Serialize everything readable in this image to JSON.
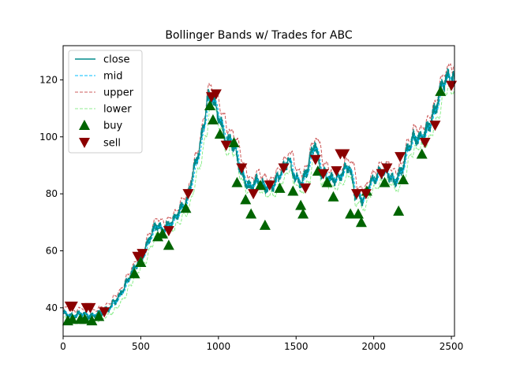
{
  "chart_data": {
    "type": "line",
    "title": "Bollinger Bands w/ Trades for ABC",
    "xlabel": "",
    "ylabel": "",
    "xlim": [
      0,
      2520
    ],
    "ylim": [
      30,
      132
    ],
    "x_ticks": [
      0,
      500,
      1000,
      1500,
      2000,
      2500
    ],
    "y_ticks": [
      40,
      60,
      80,
      100,
      120
    ],
    "x_tick_labels": [
      "0",
      "500",
      "1000",
      "1500",
      "2000",
      "2500"
    ],
    "y_tick_labels": [
      "40",
      "60",
      "80",
      "100",
      "120"
    ],
    "grid": false,
    "legend_position": "top-left",
    "colors": {
      "close": "#008b8b",
      "mid": "#00bfff",
      "upper": "#cd5c5c",
      "lower": "#90ee90",
      "buy": "#006400",
      "sell": "#8b0000"
    },
    "close_anchor_points": [
      {
        "x": 0,
        "y": 38
      },
      {
        "x": 60,
        "y": 37
      },
      {
        "x": 120,
        "y": 38
      },
      {
        "x": 180,
        "y": 37
      },
      {
        "x": 240,
        "y": 38
      },
      {
        "x": 300,
        "y": 40
      },
      {
        "x": 360,
        "y": 44
      },
      {
        "x": 420,
        "y": 50
      },
      {
        "x": 470,
        "y": 55
      },
      {
        "x": 520,
        "y": 59
      },
      {
        "x": 560,
        "y": 65
      },
      {
        "x": 600,
        "y": 69
      },
      {
        "x": 640,
        "y": 67
      },
      {
        "x": 700,
        "y": 70
      },
      {
        "x": 760,
        "y": 75
      },
      {
        "x": 800,
        "y": 78
      },
      {
        "x": 830,
        "y": 86
      },
      {
        "x": 860,
        "y": 92
      },
      {
        "x": 900,
        "y": 102
      },
      {
        "x": 930,
        "y": 113
      },
      {
        "x": 960,
        "y": 114
      },
      {
        "x": 990,
        "y": 109
      },
      {
        "x": 1020,
        "y": 104
      },
      {
        "x": 1050,
        "y": 98
      },
      {
        "x": 1080,
        "y": 99
      },
      {
        "x": 1110,
        "y": 95
      },
      {
        "x": 1150,
        "y": 87
      },
      {
        "x": 1200,
        "y": 82
      },
      {
        "x": 1250,
        "y": 85
      },
      {
        "x": 1300,
        "y": 82
      },
      {
        "x": 1350,
        "y": 83
      },
      {
        "x": 1400,
        "y": 87
      },
      {
        "x": 1450,
        "y": 92
      },
      {
        "x": 1500,
        "y": 85
      },
      {
        "x": 1540,
        "y": 84
      },
      {
        "x": 1580,
        "y": 90
      },
      {
        "x": 1620,
        "y": 98
      },
      {
        "x": 1660,
        "y": 88
      },
      {
        "x": 1720,
        "y": 85
      },
      {
        "x": 1780,
        "y": 86
      },
      {
        "x": 1840,
        "y": 90
      },
      {
        "x": 1880,
        "y": 80
      },
      {
        "x": 1930,
        "y": 78
      },
      {
        "x": 1980,
        "y": 84
      },
      {
        "x": 2030,
        "y": 87
      },
      {
        "x": 2080,
        "y": 88
      },
      {
        "x": 2130,
        "y": 84
      },
      {
        "x": 2180,
        "y": 88
      },
      {
        "x": 2220,
        "y": 96
      },
      {
        "x": 2260,
        "y": 100
      },
      {
        "x": 2300,
        "y": 99
      },
      {
        "x": 2350,
        "y": 103
      },
      {
        "x": 2400,
        "y": 110
      },
      {
        "x": 2440,
        "y": 118
      },
      {
        "x": 2480,
        "y": 121
      },
      {
        "x": 2520,
        "y": 120
      }
    ],
    "series": [
      {
        "name": "close",
        "style": "solid"
      },
      {
        "name": "mid",
        "style": "dashed"
      },
      {
        "name": "upper",
        "style": "dashed"
      },
      {
        "name": "lower",
        "style": "dashed"
      },
      {
        "name": "buy",
        "marker": "triangle-up"
      },
      {
        "name": "sell",
        "marker": "triangle-down"
      }
    ],
    "buy_points": [
      {
        "x": 30,
        "y": 35.5
      },
      {
        "x": 60,
        "y": 36
      },
      {
        "x": 110,
        "y": 36
      },
      {
        "x": 140,
        "y": 36
      },
      {
        "x": 185,
        "y": 35.5
      },
      {
        "x": 230,
        "y": 37
      },
      {
        "x": 460,
        "y": 52
      },
      {
        "x": 500,
        "y": 56
      },
      {
        "x": 610,
        "y": 65
      },
      {
        "x": 640,
        "y": 66
      },
      {
        "x": 680,
        "y": 62
      },
      {
        "x": 790,
        "y": 75
      },
      {
        "x": 945,
        "y": 111
      },
      {
        "x": 965,
        "y": 106
      },
      {
        "x": 1010,
        "y": 101
      },
      {
        "x": 1100,
        "y": 98
      },
      {
        "x": 1120,
        "y": 84
      },
      {
        "x": 1175,
        "y": 78
      },
      {
        "x": 1210,
        "y": 73
      },
      {
        "x": 1270,
        "y": 83
      },
      {
        "x": 1300,
        "y": 69
      },
      {
        "x": 1395,
        "y": 82
      },
      {
        "x": 1480,
        "y": 81
      },
      {
        "x": 1530,
        "y": 76
      },
      {
        "x": 1545,
        "y": 73
      },
      {
        "x": 1640,
        "y": 88
      },
      {
        "x": 1700,
        "y": 84
      },
      {
        "x": 1740,
        "y": 79
      },
      {
        "x": 1850,
        "y": 73
      },
      {
        "x": 1900,
        "y": 73
      },
      {
        "x": 1920,
        "y": 70
      },
      {
        "x": 1955,
        "y": 81
      },
      {
        "x": 2070,
        "y": 84
      },
      {
        "x": 2160,
        "y": 74
      },
      {
        "x": 2190,
        "y": 85
      },
      {
        "x": 2310,
        "y": 94
      },
      {
        "x": 2430,
        "y": 116
      }
    ],
    "sell_points": [
      {
        "x": 45,
        "y": 40.5
      },
      {
        "x": 60,
        "y": 40.5
      },
      {
        "x": 150,
        "y": 40
      },
      {
        "x": 175,
        "y": 40
      },
      {
        "x": 265,
        "y": 38.5
      },
      {
        "x": 480,
        "y": 58
      },
      {
        "x": 510,
        "y": 59
      },
      {
        "x": 680,
        "y": 67
      },
      {
        "x": 805,
        "y": 80
      },
      {
        "x": 955,
        "y": 114
      },
      {
        "x": 985,
        "y": 115
      },
      {
        "x": 1050,
        "y": 97
      },
      {
        "x": 1150,
        "y": 89
      },
      {
        "x": 1225,
        "y": 80
      },
      {
        "x": 1330,
        "y": 83
      },
      {
        "x": 1420,
        "y": 89
      },
      {
        "x": 1560,
        "y": 82
      },
      {
        "x": 1625,
        "y": 92
      },
      {
        "x": 1675,
        "y": 87
      },
      {
        "x": 1760,
        "y": 88
      },
      {
        "x": 1785,
        "y": 94
      },
      {
        "x": 1810,
        "y": 94
      },
      {
        "x": 1890,
        "y": 80
      },
      {
        "x": 1950,
        "y": 80
      },
      {
        "x": 2050,
        "y": 87
      },
      {
        "x": 2085,
        "y": 89
      },
      {
        "x": 2170,
        "y": 93
      },
      {
        "x": 2330,
        "y": 98
      },
      {
        "x": 2395,
        "y": 104
      },
      {
        "x": 2500,
        "y": 118
      }
    ]
  }
}
